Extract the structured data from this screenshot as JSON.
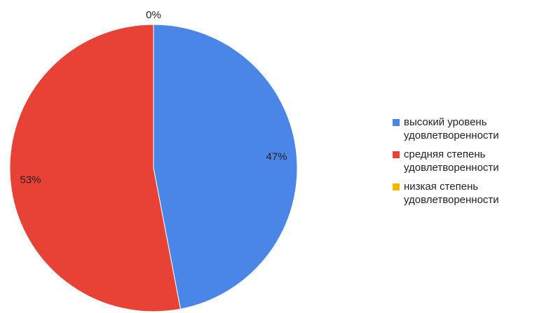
{
  "chart_data": {
    "type": "pie",
    "title": "",
    "slices": [
      {
        "label": "высокий уровень удовлетворенности",
        "value": 47,
        "value_label": "47%",
        "color": "#4a86e8"
      },
      {
        "label": "средняя степень удовлетворенности",
        "value": 53,
        "value_label": "53%",
        "color": "#e84135"
      },
      {
        "label": "низкая степень удовлетворенности",
        "value": 0,
        "value_label": "0%",
        "color": "#f7b500"
      }
    ],
    "legend_position": "right",
    "start_angle": "top",
    "direction": "clockwise"
  }
}
